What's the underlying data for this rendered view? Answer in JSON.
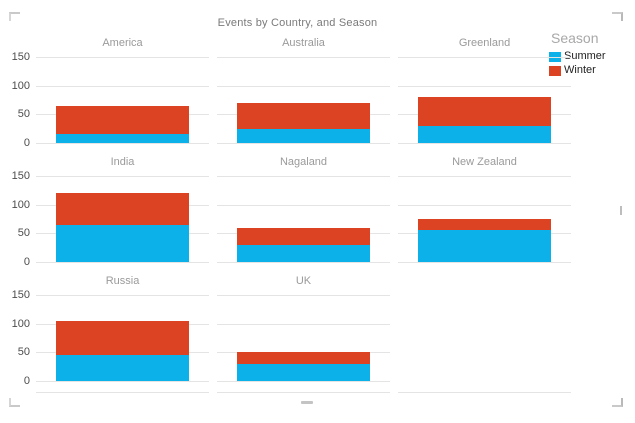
{
  "title": "Events by Country, and Season",
  "legend": {
    "title": "Season",
    "items": [
      {
        "label": "Summer",
        "color": "#0bb1e8"
      },
      {
        "label": "Winter",
        "color": "#dc4322"
      }
    ]
  },
  "colors": {
    "summer": "#0bb1e8",
    "winter": "#dc4322",
    "gridline": "#e4e4e4",
    "panel_title": "#9a9a9a",
    "axis_label": "#4d4d4d",
    "chart_title": "#7a7a7a"
  },
  "y_axis": {
    "ticks": [
      150,
      100,
      50,
      0
    ],
    "max": 150
  },
  "chart_data": {
    "type": "bar",
    "subtype": "small-multiples-stacked-bar",
    "title": "Events by Country, and Season",
    "panels": [
      "America",
      "Australia",
      "Greenland",
      "India",
      "Nagaland",
      "New Zealand",
      "Russia",
      "UK"
    ],
    "series": [
      {
        "name": "Summer",
        "color": "#0bb1e8",
        "values": [
          15,
          25,
          30,
          65,
          30,
          55,
          45,
          30
        ]
      },
      {
        "name": "Winter",
        "color": "#dc4322",
        "values": [
          50,
          45,
          50,
          55,
          30,
          20,
          60,
          20
        ]
      }
    ],
    "totals": [
      65,
      70,
      80,
      120,
      60,
      75,
      105,
      50
    ],
    "ylim": [
      0,
      150
    ],
    "yticks": [
      0,
      50,
      100,
      150
    ],
    "grid": "horizontal",
    "legend_position": "top-right"
  }
}
